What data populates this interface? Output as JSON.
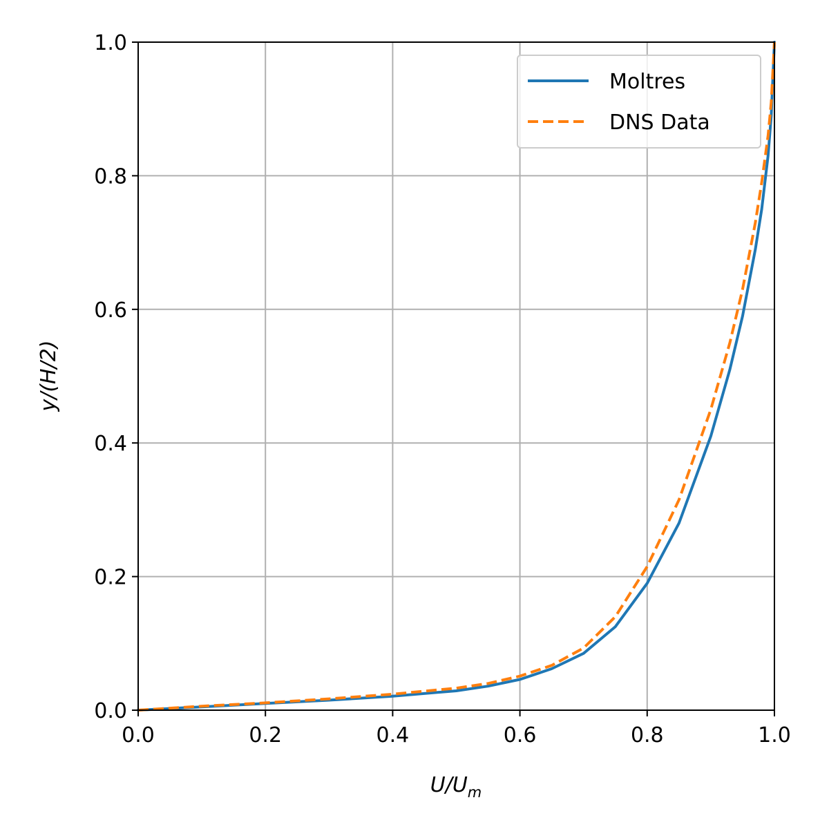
{
  "chart_data": {
    "type": "line",
    "xlabel": "U/U",
    "xlabel_sub": "m",
    "ylabel": "y/(H/2)",
    "xlim": [
      0.0,
      1.0
    ],
    "ylim": [
      0.0,
      1.0
    ],
    "x_ticks": [
      "0.0",
      "0.2",
      "0.4",
      "0.6",
      "0.8",
      "1.0"
    ],
    "y_ticks": [
      "0.0",
      "0.2",
      "0.4",
      "0.6",
      "0.8",
      "1.0"
    ],
    "grid": true,
    "legend_position": "upper-right",
    "series": [
      {
        "name": "Moltres",
        "color": "#1f77b4",
        "style": "solid",
        "x": [
          0.0,
          0.1,
          0.2,
          0.3,
          0.4,
          0.5,
          0.55,
          0.6,
          0.65,
          0.7,
          0.75,
          0.8,
          0.85,
          0.9,
          0.93,
          0.95,
          0.97,
          0.98,
          0.99,
          0.995,
          1.0
        ],
        "y": [
          0.0,
          0.005,
          0.01,
          0.015,
          0.021,
          0.029,
          0.036,
          0.046,
          0.062,
          0.085,
          0.125,
          0.19,
          0.28,
          0.41,
          0.51,
          0.59,
          0.69,
          0.75,
          0.83,
          0.89,
          1.0
        ]
      },
      {
        "name": "DNS Data",
        "color": "#ff7f0e",
        "style": "dashed",
        "x": [
          0.0,
          0.1,
          0.2,
          0.3,
          0.4,
          0.5,
          0.55,
          0.6,
          0.65,
          0.7,
          0.75,
          0.8,
          0.85,
          0.9,
          0.93,
          0.95,
          0.97,
          0.98,
          0.99,
          0.995,
          1.0
        ],
        "y": [
          0.0,
          0.006,
          0.011,
          0.017,
          0.024,
          0.033,
          0.04,
          0.051,
          0.067,
          0.093,
          0.14,
          0.215,
          0.315,
          0.45,
          0.55,
          0.63,
          0.73,
          0.79,
          0.86,
          0.91,
          1.0
        ]
      }
    ]
  }
}
